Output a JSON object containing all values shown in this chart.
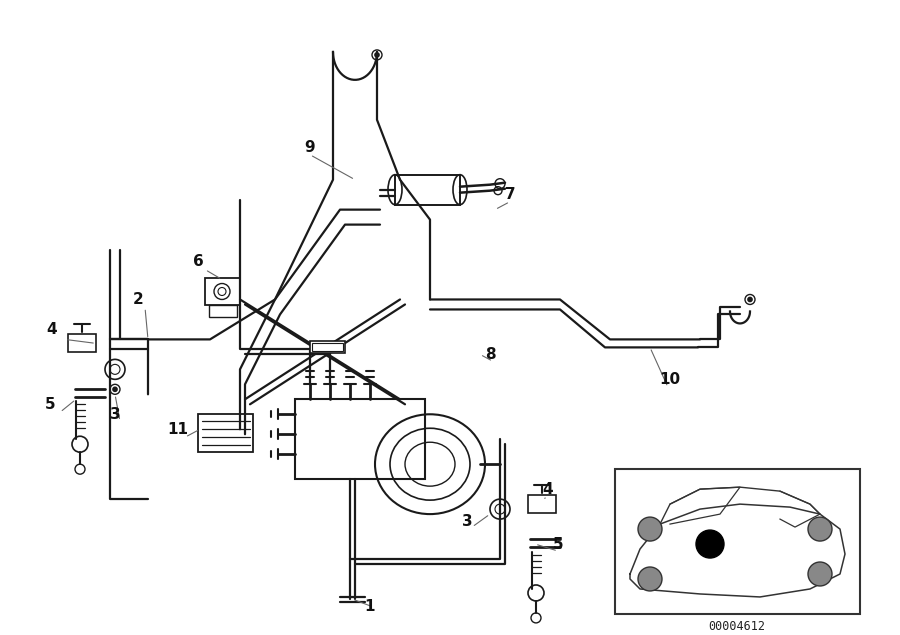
{
  "bg_color": "#ffffff",
  "line_color": "#1a1a1a",
  "diagram_id": "00004612",
  "lw_pipe": 1.6,
  "lw_component": 1.2,
  "label_fontsize": 11,
  "label_fontweight": "bold"
}
